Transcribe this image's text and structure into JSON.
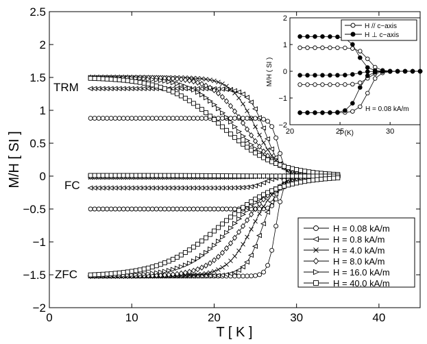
{
  "chart_data": [
    {
      "type": "line",
      "xlabel": "T [ K ]",
      "ylabel": "M/H [ SI ]",
      "xlim": [
        0,
        45
      ],
      "ylim": [
        -2,
        2.5
      ],
      "xticks": [
        "0",
        "10",
        "20",
        "30",
        "40"
      ],
      "yticks": [
        "−2",
        "−1.5",
        "−1",
        "−0.5",
        "0",
        "0.5",
        "1",
        "1.5",
        "2",
        "2.5"
      ],
      "grid": false,
      "legend_position": "bottom-right",
      "annotations": {
        "trm": "TRM",
        "fc": "FC",
        "zfc": "ZFC"
      },
      "x": [
        5,
        35
      ],
      "series": [
        {
          "name": "H = 0.08  kA/m",
          "marker": "circle",
          "trm": 0.88,
          "fc": -0.5,
          "tc": 27.8,
          "w": 0.45
        },
        {
          "name": "H = 0.8   kA/m",
          "marker": "triangle-left",
          "trm": 1.33,
          "fc": -0.18,
          "tc": 26.2,
          "w": 1.0
        },
        {
          "name": "H = 4.0   kA/m",
          "marker": "x",
          "trm": 1.5,
          "fc": -0.02,
          "tc": 25.0,
          "w": 1.5
        },
        {
          "name": "H = 8.0   kA/m",
          "marker": "diamond",
          "trm": 1.5,
          "fc": -0.01,
          "tc": 23.8,
          "w": 2.0
        },
        {
          "name": "H = 16.0  kA/m",
          "marker": "triangle-right",
          "trm": 1.5,
          "fc": 0.0,
          "tc": 22.5,
          "w": 2.6
        },
        {
          "name": "H = 40.0  kA/m",
          "marker": "square",
          "trm": 1.5,
          "fc": 0.01,
          "tc": 21.0,
          "w": 3.4
        }
      ]
    },
    {
      "type": "line",
      "xlabel": "T (K)",
      "ylabel": "M/H ( SI )",
      "xlim": [
        20,
        33
      ],
      "ylim": [
        -2,
        2
      ],
      "xticks": [
        "20",
        "25",
        "30"
      ],
      "yticks": [
        "−2",
        "−1",
        "0",
        "1",
        "2"
      ],
      "note": "H = 0.08  kA/m",
      "legend_position": "top-right",
      "series": [
        {
          "name": "H // c−axis",
          "marker": "open-circle",
          "trm": 0.88,
          "fc": -0.5,
          "zfc": -1.55,
          "tc": 27.8
        },
        {
          "name": "H ⊥ c−axis",
          "marker": "filled-circle",
          "trm": 1.3,
          "fc": -0.15,
          "zfc": -1.55,
          "tc": 26.8
        }
      ]
    }
  ]
}
